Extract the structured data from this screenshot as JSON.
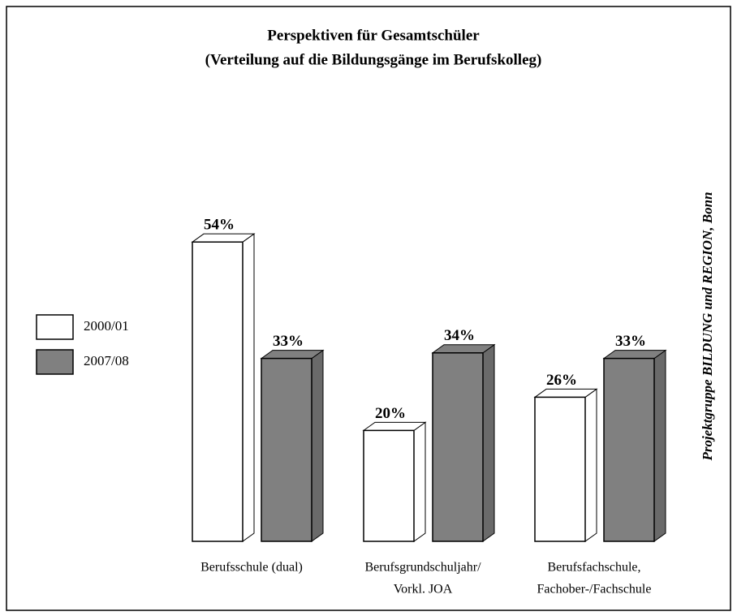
{
  "chart_data": {
    "type": "bar",
    "title": [
      "Perspektiven für Gesamtschüler",
      "(Verteilung auf die Bildungsgänge im Berufskolleg)"
    ],
    "side_note": "Projektgruppe BILDUNG und REGION, Bonn",
    "categories": [
      [
        "Berufsschule (dual)"
      ],
      [
        "Berufsgrundschuljahr/",
        "Vorkl. JOA"
      ],
      [
        "Berufsfachschule,",
        "Fachober-/Fachschule"
      ]
    ],
    "series": [
      {
        "name": "2000/01",
        "color": "#ffffff",
        "values": [
          54,
          20,
          26
        ],
        "value_labels": [
          "54%",
          "20%",
          "26%"
        ]
      },
      {
        "name": "2007/08",
        "color": "#808080",
        "values": [
          33,
          34,
          33
        ],
        "value_labels": [
          "33%",
          "34%",
          "33%"
        ]
      }
    ]
  }
}
